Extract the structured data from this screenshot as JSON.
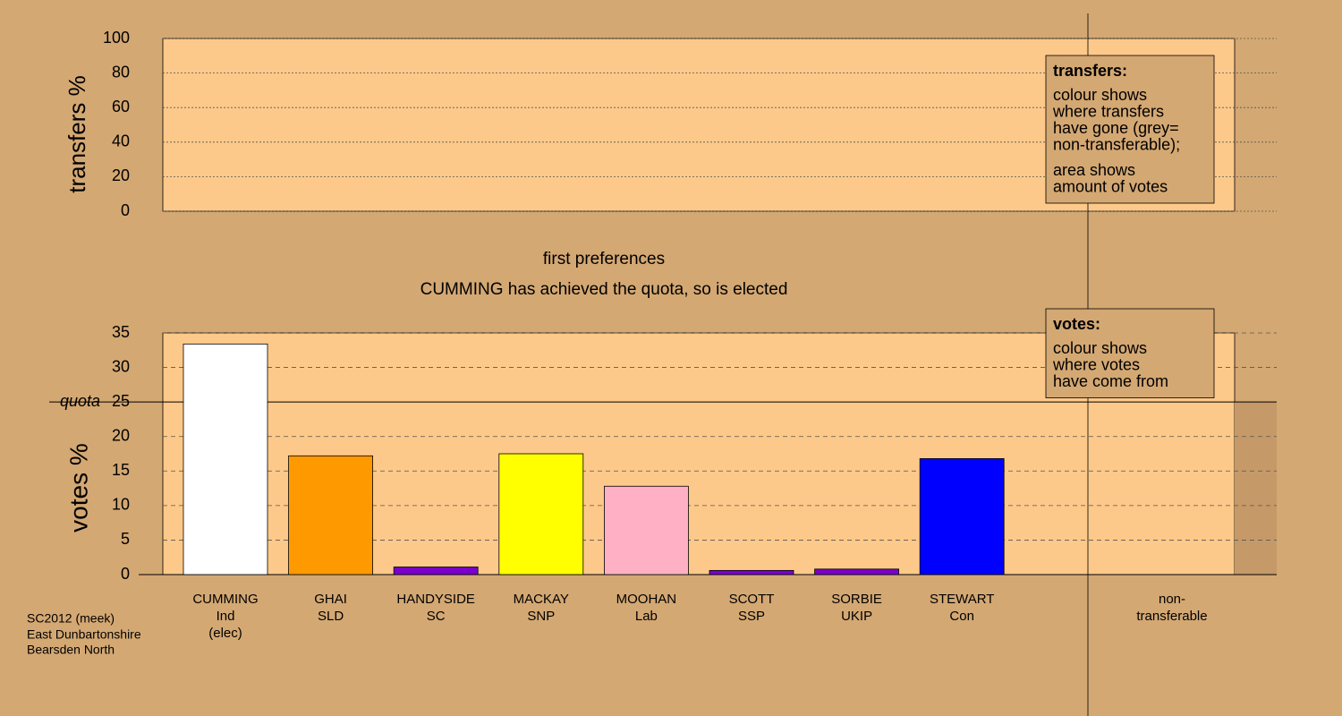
{
  "chart_data": [
    {
      "type": "bar",
      "ylabel": "transfers %",
      "ylim": [
        0,
        100
      ],
      "yticks": [
        0,
        20,
        40,
        60,
        80,
        100
      ],
      "grid": true,
      "legend": {
        "title": "transfers:",
        "paragraphs": [
          [
            "colour shows",
            "where transfers",
            "have gone (grey=",
            "non-transferable);"
          ],
          [
            "area shows",
            "amount of votes"
          ]
        ]
      }
    },
    {
      "type": "bar",
      "title": "first preferences",
      "subtitle": "CUMMING has achieved the quota, so is elected",
      "ylabel": "votes %",
      "ylim": [
        0,
        35
      ],
      "yticks": [
        0,
        5,
        10,
        15,
        20,
        25,
        30,
        35
      ],
      "grid": true,
      "quota": {
        "value": 25,
        "label": "quota"
      },
      "categories": [
        "CUMMING",
        "GHAI",
        "HANDYSIDE",
        "MACKAY",
        "MOOHAN",
        "SCOTT",
        "SORBIE",
        "STEWART"
      ],
      "parties": [
        "Ind",
        "SLD",
        "SC",
        "SNP",
        "Lab",
        "SSP",
        "UKIP",
        "Con"
      ],
      "notes": [
        "(elec)",
        null,
        null,
        null,
        null,
        null,
        null,
        null
      ],
      "values": [
        33.4,
        17.2,
        1.1,
        17.5,
        12.8,
        0.6,
        0.8,
        16.8
      ],
      "colors": [
        "#ffffff",
        "#ff9900",
        "#7a00cc",
        "#ffff00",
        "#ffb0c4",
        "#7a00cc",
        "#7a00cc",
        "#0000ff"
      ],
      "extra_category": [
        "non-",
        "transferable"
      ],
      "legend": {
        "title": "votes:",
        "paragraphs": [
          [
            "colour shows",
            "where votes",
            "have come from"
          ]
        ]
      }
    }
  ],
  "footer": [
    "SC2012 (meek)",
    "East Dunbartonshire",
    "Bearsden North"
  ]
}
